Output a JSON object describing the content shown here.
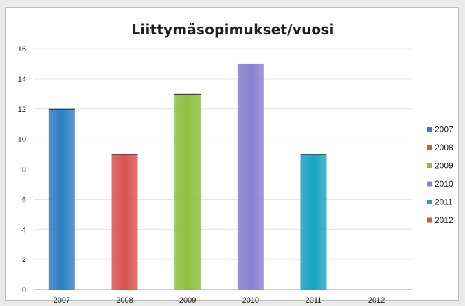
{
  "chart_data": {
    "type": "bar",
    "title": "Liittymäsopimukset/vuosi",
    "categories": [
      "2007",
      "2008",
      "2009",
      "2010",
      "2011",
      "2012"
    ],
    "values": [
      12,
      9,
      13,
      15,
      9,
      0
    ],
    "ylim": [
      0,
      16
    ],
    "yticks": [
      "0",
      "2",
      "4",
      "6",
      "8",
      "10",
      "12",
      "14",
      "16"
    ],
    "grid": true,
    "legend_position": "right",
    "legend": [
      "2007",
      "2008",
      "2009",
      "2010",
      "2011",
      "2012"
    ],
    "colors": [
      "#2e7fc4",
      "#d9534f",
      "#8cbf3f",
      "#8a7fd0",
      "#1aa3c4",
      "#d9534f"
    ]
  }
}
